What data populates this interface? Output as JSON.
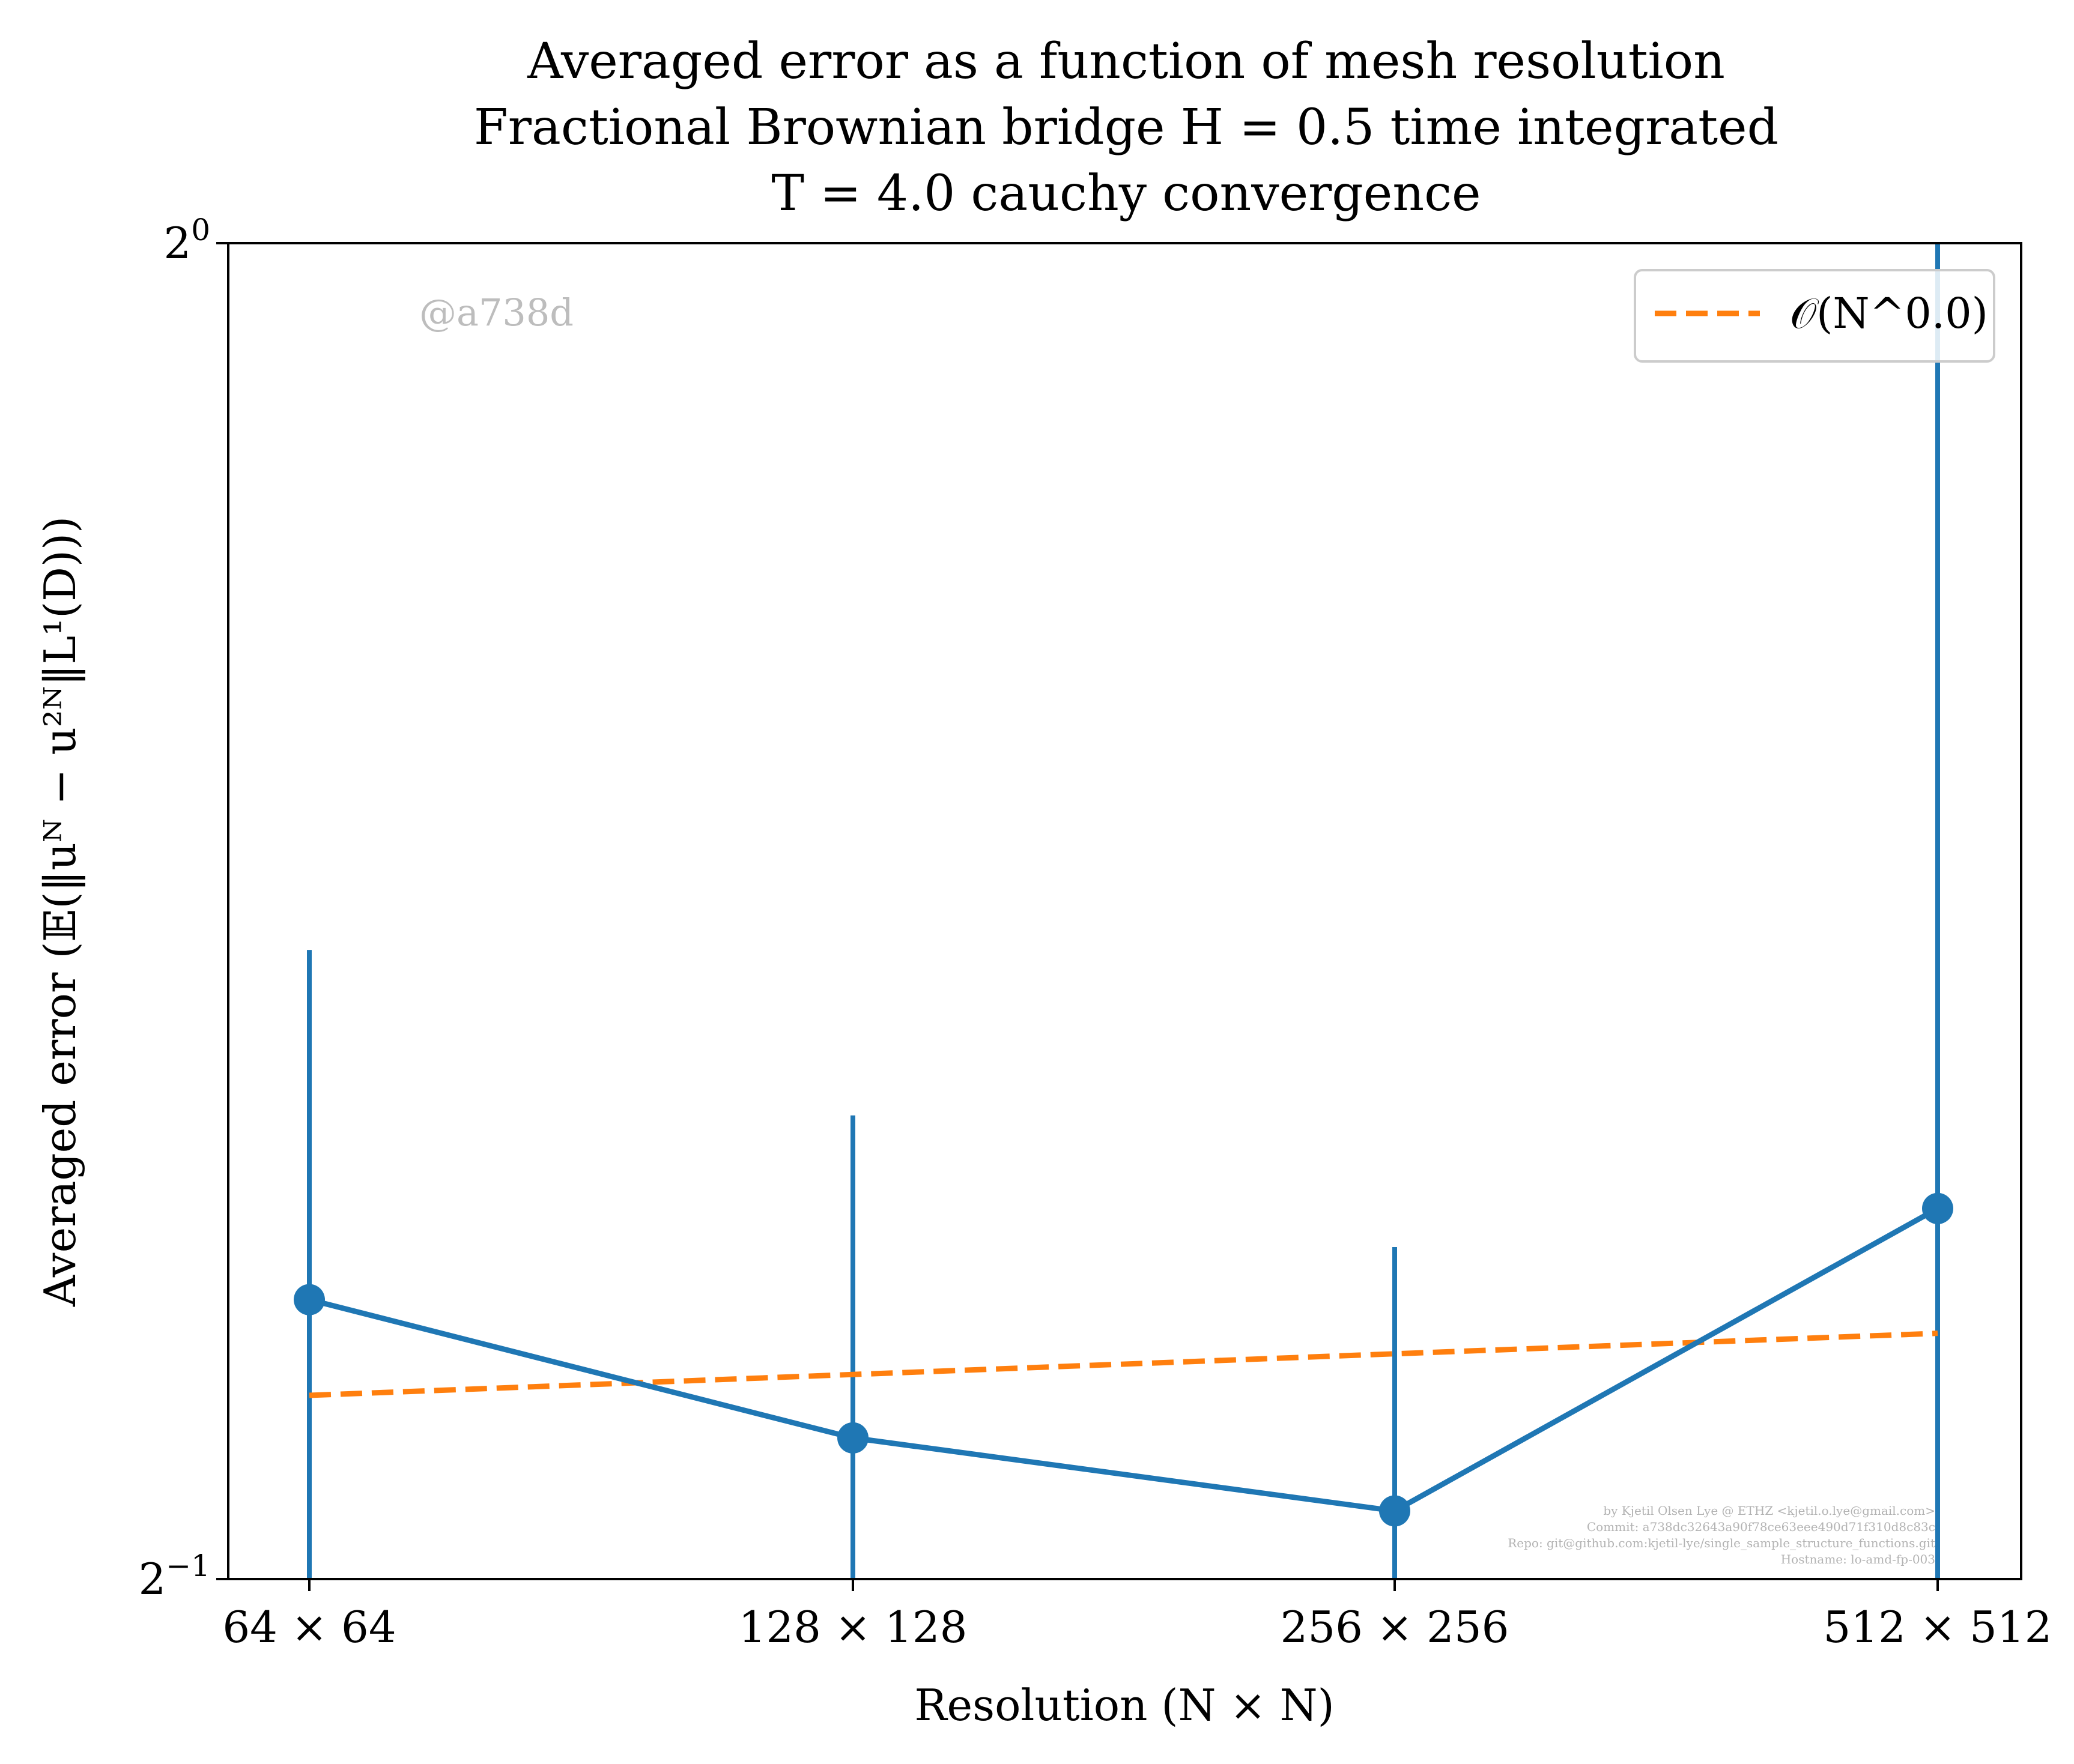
{
  "chart_data": {
    "type": "line",
    "title_lines": [
      "Averaged error as a function of mesh resolution",
      "Fractional Brownian bridge H = 0.5 time integrated",
      "T = 4.0 cauchy convergence"
    ],
    "xlabel": "Resolution (N × N)",
    "ylabel": "Averaged error (𝔼(‖uᴺ − u²ᴺ‖L¹(D)))",
    "categories": [
      "64 × 64",
      "128 × 128",
      "256 × 256",
      "512 × 512"
    ],
    "y_scale": "log2",
    "ylim": [
      0.5,
      1.0
    ],
    "y_ticks": [
      {
        "value": 0.5,
        "base": "2",
        "exp": "−1"
      },
      {
        "value": 1.0,
        "base": "2",
        "exp": "0"
      }
    ],
    "grid": false,
    "legend_position": "top-right",
    "series": [
      {
        "name": "",
        "style": "solid-with-markers",
        "color": "#1f77b4",
        "values": [
          0.578,
          0.538,
          0.518,
          0.606
        ],
        "error_low": [
          0.5,
          0.5,
          0.5,
          0.5
        ],
        "error_high": [
          0.693,
          0.636,
          0.594,
          1.0
        ]
      },
      {
        "name": "𝒪(N^0.0)",
        "style": "dashed",
        "color": "#ff7f0e",
        "values": [
          0.55,
          0.556,
          0.562,
          0.568
        ]
      }
    ],
    "annotations": {
      "watermark": "@a738d",
      "credits": [
        "by Kjetil Olsen Lye @ ETHZ <kjetil.o.lye@gmail.com>",
        "Commit: a738dc32643a90f78ce63eee490d71f310d8c83c",
        "Repo: git@github.com:kjetil-lye/single_sample_structure_functions.git",
        "Hostname: lo-amd-fp-003"
      ]
    }
  }
}
